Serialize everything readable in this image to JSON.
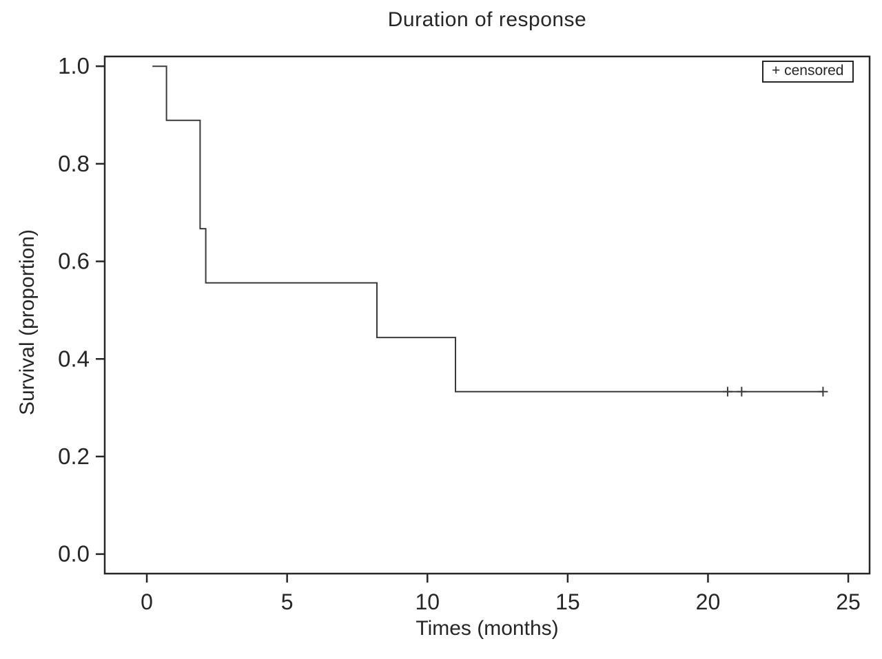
{
  "chart_data": {
    "type": "line",
    "subtype": "kaplan-meier-step",
    "title": "Duration of response",
    "xlabel": "Times (months)",
    "ylabel": "Survival (proportion)",
    "xlim": [
      -1.5,
      25.76
    ],
    "ylim": [
      -0.04,
      1.02
    ],
    "x_ticks": [
      0,
      5,
      10,
      15,
      20,
      25
    ],
    "x_tick_labels": [
      "0",
      "5",
      "10",
      "15",
      "20",
      "25"
    ],
    "y_ticks": [
      0.0,
      0.2,
      0.4,
      0.6,
      0.8,
      1.0
    ],
    "y_tick_labels": [
      "0.0",
      "0.2",
      "0.4",
      "0.6",
      "0.8",
      "1.0"
    ],
    "grid": false,
    "legend": {
      "label": "+ censored",
      "position": "top-right"
    },
    "series": [
      {
        "name": "Duration of response",
        "step_points": [
          [
            0.2,
            1.0
          ],
          [
            0.7,
            1.0
          ],
          [
            0.7,
            0.889
          ],
          [
            1.9,
            0.889
          ],
          [
            1.9,
            0.667
          ],
          [
            2.1,
            0.667
          ],
          [
            2.1,
            0.556
          ],
          [
            8.2,
            0.556
          ],
          [
            8.2,
            0.444
          ],
          [
            11.0,
            0.444
          ],
          [
            11.0,
            0.333
          ],
          [
            24.1,
            0.333
          ]
        ],
        "censored": [
          [
            20.7,
            0.333
          ],
          [
            21.2,
            0.333
          ],
          [
            24.1,
            0.333
          ]
        ]
      }
    ]
  },
  "colors": {
    "line": "#3a3a3a",
    "axis": "#262626",
    "background": "#ffffff"
  }
}
